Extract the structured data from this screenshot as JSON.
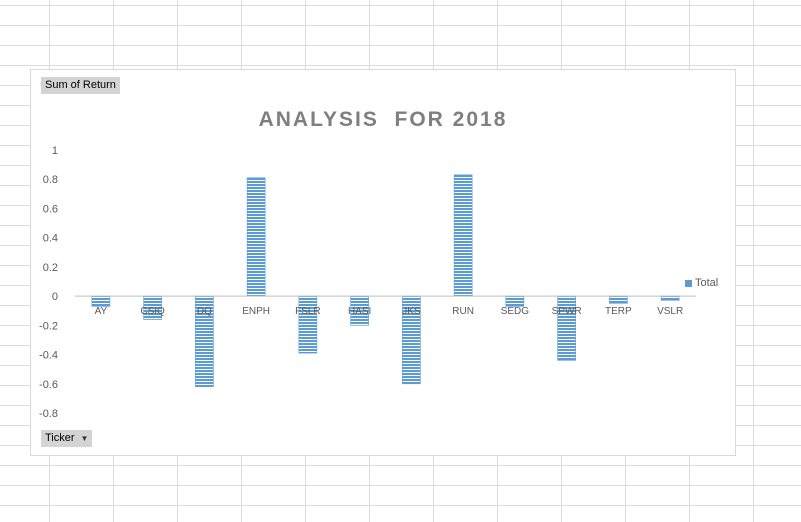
{
  "pivot": {
    "value_field": "Sum of Return",
    "row_field": "Ticker"
  },
  "colors": {
    "bar": "#5b9bd5",
    "bar_stripe": "#ffffff",
    "axis": "#bfbfbf",
    "title": "#7f7f7f"
  },
  "icons": {
    "dropdown": "dropdown-arrow-icon"
  },
  "chart_data": {
    "type": "bar",
    "title": "ANALYSIS  FOR 2018",
    "xlabel": "",
    "ylabel": "",
    "ylim": [
      -0.8,
      1
    ],
    "yticks": [
      1,
      0.8,
      0.6,
      0.4,
      0.2,
      0,
      -0.2,
      -0.4,
      -0.6,
      -0.8
    ],
    "ytick_labels": [
      "1",
      "0.8",
      "0.6",
      "0.4",
      "0.2",
      "0",
      "-0.2",
      "-0.4",
      "-0.6",
      "-0.8"
    ],
    "categories": [
      "AY",
      "CSIQ",
      "DQ",
      "ENPH",
      "FSLR",
      "HASI",
      "JKS",
      "RUN",
      "SEDG",
      "SPWR",
      "TERP",
      "VSLR"
    ],
    "series": [
      {
        "name": "Total",
        "values": [
          -0.07,
          -0.16,
          -0.62,
          0.81,
          -0.39,
          -0.2,
          -0.6,
          0.83,
          -0.07,
          -0.44,
          -0.05,
          -0.03
        ]
      }
    ],
    "grid": false,
    "legend": "right"
  }
}
